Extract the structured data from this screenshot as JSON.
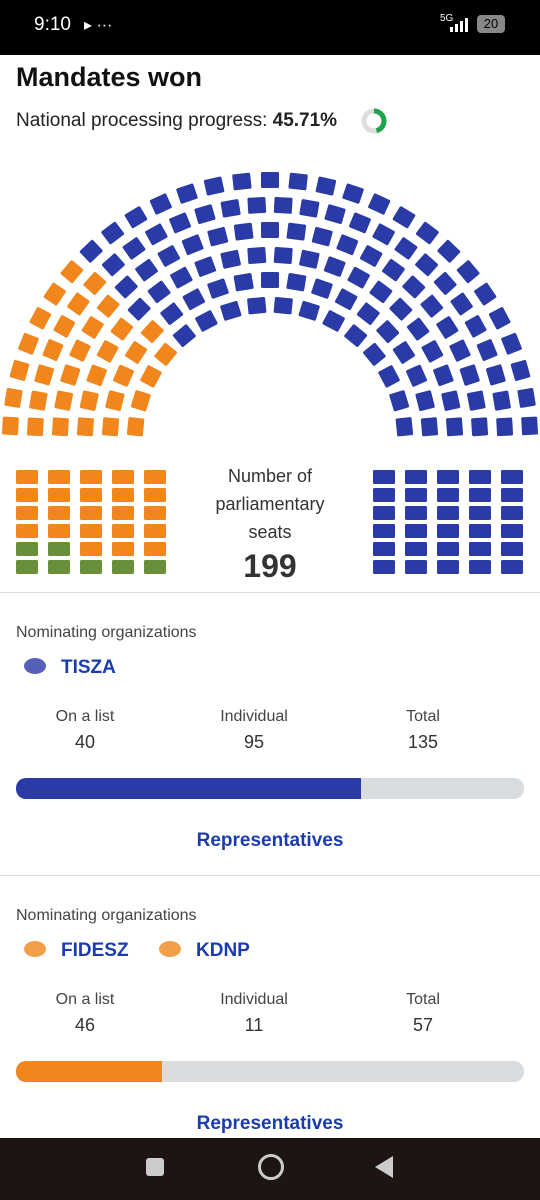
{
  "status_bar": {
    "time": "9:10",
    "network": "5G",
    "battery": "20"
  },
  "header": {
    "title": "Mandates won",
    "progress_label": "National processing progress:",
    "progress": {
      "value": 45.71,
      "label": "45.71%"
    }
  },
  "chart": {
    "center_label": "Number of parliamentary seats",
    "total_seats": 199,
    "other_color": "#6a8f3a"
  },
  "organizations": [
    {
      "section_label": "Nominating organizations",
      "parties": [
        "TISZA"
      ],
      "columns": [
        "On a list",
        "Individual",
        "Total"
      ],
      "values": [
        40,
        95,
        135
      ],
      "color": "#2a3aa6",
      "link": "Representatives"
    },
    {
      "section_label": "Nominating organizations",
      "parties": [
        "FIDESZ",
        "KDNP"
      ],
      "columns": [
        "On a list",
        "Individual",
        "Total"
      ],
      "values": [
        46,
        11,
        57
      ],
      "color": "#f0861c",
      "link": "Representatives"
    }
  ]
}
